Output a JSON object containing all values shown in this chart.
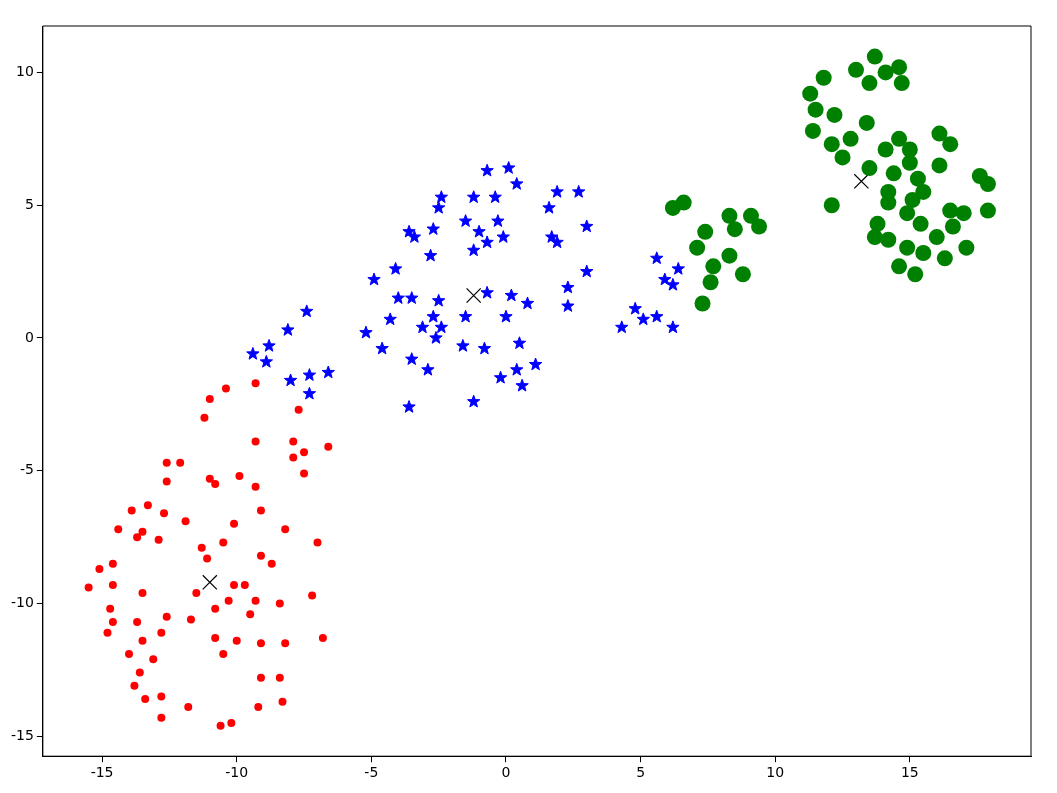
{
  "chart_data": {
    "type": "scatter",
    "xlim": [
      -17.2,
      19.5
    ],
    "ylim": [
      -15.75,
      11.75
    ],
    "xticks": [
      -15,
      -10,
      -5,
      0,
      5,
      10,
      15
    ],
    "yticks": [
      -15,
      -10,
      -5,
      0,
      5,
      10
    ],
    "legend": false,
    "series": [
      {
        "color": "#ff0000",
        "marker": "circle",
        "x": [
          -9.3,
          -10.4,
          -11.0,
          -11.2,
          -7.7,
          -9.3,
          -7.9,
          -7.5,
          -7.9,
          -6.6,
          -7.5,
          -12.6,
          -12.1,
          -12.6,
          -11.0,
          -10.8,
          -9.9,
          -9.3,
          -13.9,
          -13.3,
          -12.7,
          -11.9,
          -10.1,
          -9.1,
          -14.4,
          -13.5,
          -13.7,
          -12.9,
          -8.2,
          -7.0,
          -11.3,
          -10.5,
          -11.1,
          -9.1,
          -8.7,
          -14.6,
          -15.1,
          -14.6,
          -15.5,
          -13.5,
          -11.5,
          -10.1,
          -9.7,
          -10.3,
          -9.3,
          -10.8,
          -9.5,
          -8.4,
          -7.2,
          -14.7,
          -14.6,
          -13.7,
          -12.6,
          -11.7,
          -14.8,
          -12.8,
          -13.5,
          -10.8,
          -10.0,
          -9.1,
          -8.2,
          -6.8,
          -10.5,
          -14.0,
          -13.1,
          -13.6,
          -9.1,
          -8.4,
          -13.8,
          -13.4,
          -12.8,
          -11.8,
          -9.2,
          -8.3,
          -12.8,
          -10.6,
          -10.2
        ],
        "values": [
          -1.7,
          -1.9,
          -2.3,
          -3.0,
          -2.7,
          -3.9,
          -3.9,
          -4.3,
          -4.5,
          -4.1,
          -5.1,
          -4.7,
          -4.7,
          -5.4,
          -5.3,
          -5.5,
          -5.2,
          -5.6,
          -6.5,
          -6.3,
          -6.6,
          -6.9,
          -7.0,
          -6.5,
          -7.2,
          -7.3,
          -7.5,
          -7.6,
          -7.2,
          -7.7,
          -7.9,
          -7.7,
          -8.3,
          -8.2,
          -8.5,
          -8.5,
          -8.7,
          -9.3,
          -9.4,
          -9.6,
          -9.6,
          -9.3,
          -9.3,
          -9.9,
          -9.9,
          -10.2,
          -10.4,
          -10.0,
          -9.7,
          -10.2,
          -10.7,
          -10.7,
          -10.5,
          -10.6,
          -11.1,
          -11.1,
          -11.4,
          -11.3,
          -11.4,
          -11.5,
          -11.5,
          -11.3,
          -11.9,
          -11.9,
          -12.1,
          -12.6,
          -12.8,
          -12.8,
          -13.1,
          -13.6,
          -13.5,
          -13.9,
          -13.9,
          -13.7,
          -14.3,
          -14.6,
          -14.5
        ]
      },
      {
        "color": "#0000ff",
        "marker": "star",
        "x": [
          -0.7,
          0.1,
          0.4,
          -2.4,
          -2.5,
          -1.2,
          -0.4,
          1.9,
          2.7,
          1.6,
          3.0,
          -1.5,
          -0.3,
          -1.0,
          -2.7,
          -3.6,
          -3.4,
          -0.7,
          -0.1,
          -1.2,
          -2.8,
          1.7,
          1.9,
          3.0,
          2.3,
          2.3,
          -4.1,
          -4.9,
          -4.0,
          -3.5,
          -2.5,
          -0.7,
          0.2,
          0.8,
          -4.3,
          -2.7,
          -1.5,
          0.0,
          -2.4,
          -3.1,
          -5.2,
          -2.6,
          -4.6,
          -1.6,
          -0.8,
          0.5,
          -3.5,
          -2.9,
          -0.2,
          0.4,
          1.1,
          0.6,
          -1.2,
          -3.6,
          -7.4,
          -8.1,
          -8.8,
          -9.4,
          -8.9,
          -8.0,
          -7.3,
          -6.6,
          -7.3,
          5.6,
          6.4,
          5.9,
          6.2,
          4.8,
          5.1,
          5.6,
          4.3,
          6.2
        ],
        "values": [
          6.3,
          6.4,
          5.8,
          5.3,
          4.9,
          5.3,
          5.3,
          5.5,
          5.5,
          4.9,
          4.2,
          4.4,
          4.4,
          4.0,
          4.1,
          4.0,
          3.8,
          3.6,
          3.8,
          3.3,
          3.1,
          3.8,
          3.6,
          2.5,
          1.9,
          1.2,
          2.6,
          2.2,
          1.5,
          1.5,
          1.4,
          1.7,
          1.6,
          1.3,
          0.7,
          0.8,
          0.8,
          0.8,
          0.4,
          0.4,
          0.2,
          0.0,
          -0.4,
          -0.3,
          -0.4,
          -0.2,
          -0.8,
          -1.2,
          -1.5,
          -1.2,
          -1.0,
          -1.8,
          -2.4,
          -2.6,
          1.0,
          0.3,
          -0.3,
          -0.6,
          -0.9,
          -1.6,
          -1.4,
          -1.3,
          -2.1,
          3.0,
          2.6,
          2.2,
          2.0,
          1.1,
          0.7,
          0.8,
          0.4,
          0.4
        ]
      },
      {
        "color": "#008000",
        "marker": "circle",
        "x": [
          6.2,
          6.6,
          7.4,
          7.1,
          8.3,
          8.5,
          9.1,
          9.4,
          8.3,
          7.7,
          7.6,
          8.8,
          7.3,
          13.7,
          13.0,
          14.1,
          14.6,
          13.5,
          14.7,
          11.8,
          11.3,
          11.5,
          12.2,
          11.4,
          13.4,
          12.1,
          12.8,
          12.5,
          14.6,
          14.1,
          15.0,
          15.0,
          16.1,
          16.5,
          16.1,
          13.5,
          14.4,
          15.3,
          14.2,
          15.5,
          14.2,
          15.1,
          14.9,
          12.1,
          17.6,
          17.9,
          17.9,
          16.5,
          17.0,
          13.8,
          15.4,
          16.6,
          13.7,
          14.2,
          14.9,
          16.0,
          15.5,
          17.1,
          16.3,
          14.6,
          15.2
        ],
        "values": [
          4.9,
          5.1,
          4.0,
          3.4,
          4.6,
          4.1,
          4.6,
          4.2,
          3.1,
          2.7,
          2.1,
          2.4,
          1.3,
          10.6,
          10.1,
          10.0,
          10.2,
          9.6,
          9.6,
          9.8,
          9.2,
          8.6,
          8.4,
          7.8,
          8.1,
          7.3,
          7.5,
          6.8,
          7.5,
          7.1,
          7.1,
          6.6,
          7.7,
          7.3,
          6.5,
          6.4,
          6.2,
          6.0,
          5.5,
          5.5,
          5.1,
          5.2,
          4.7,
          5.0,
          6.1,
          5.8,
          4.8,
          4.8,
          4.7,
          4.3,
          4.3,
          4.2,
          3.8,
          3.7,
          3.4,
          3.8,
          3.2,
          3.4,
          3.0,
          2.7,
          2.4
        ]
      },
      {
        "color": "#000000",
        "marker": "cross",
        "x": [
          -11.0,
          -1.2,
          13.2
        ],
        "values": [
          -9.2,
          1.6,
          5.9
        ]
      }
    ]
  }
}
